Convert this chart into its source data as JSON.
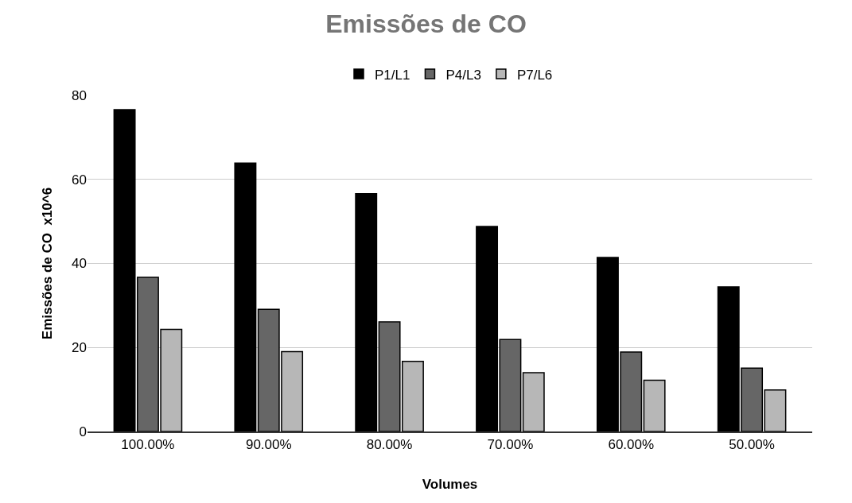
{
  "chart_data": {
    "type": "bar",
    "title": "Emissões de CO",
    "xlabel": "Volumes",
    "ylabel": "Emissões de CO  x10^6",
    "categories": [
      "100.00%",
      "90.00%",
      "80.00%",
      "70.00%",
      "60.00%",
      "50.00%"
    ],
    "series": [
      {
        "name": "P1/L1",
        "color": "#000000",
        "values": [
          76.6,
          63.9,
          56.6,
          48.8,
          41.4,
          34.4
        ]
      },
      {
        "name": "P4/L3",
        "color": "#666666",
        "values": [
          36.7,
          29.1,
          26.1,
          21.9,
          18.9,
          15.1
        ]
      },
      {
        "name": "P7/L6",
        "color": "#b7b7b7",
        "values": [
          24.3,
          19.0,
          16.7,
          14.0,
          12.2,
          9.9
        ]
      }
    ],
    "ylim": [
      0,
      80
    ],
    "yticks": [
      0,
      20,
      40,
      60,
      80
    ],
    "grid": "y",
    "legend": "top"
  }
}
